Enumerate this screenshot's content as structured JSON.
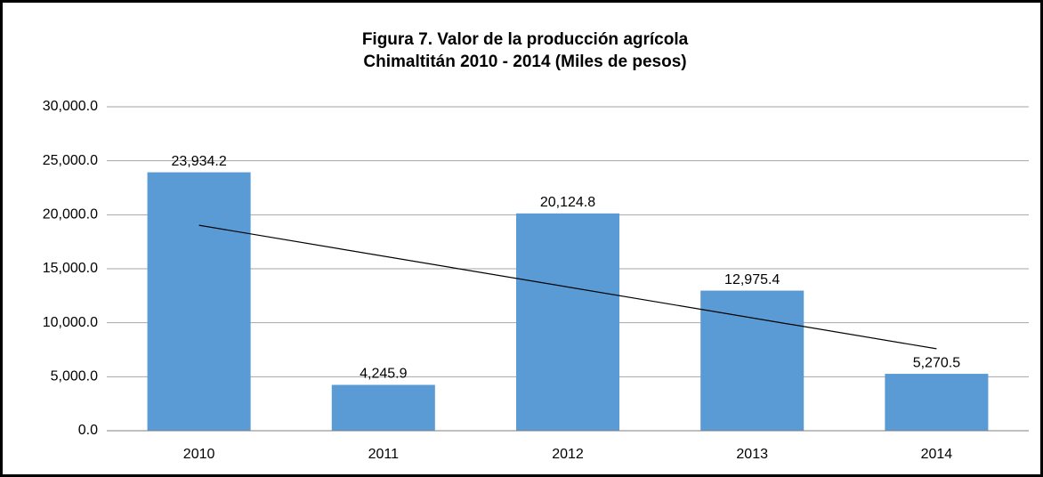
{
  "chart_data": {
    "type": "bar",
    "title": [
      "Figura 7. Valor de la producción agrícola",
      "Chimaltitán 2010 - 2014 (Miles de pesos)"
    ],
    "categories": [
      "2010",
      "2011",
      "2012",
      "2013",
      "2014"
    ],
    "values": [
      23934.2,
      4245.9,
      20124.8,
      12975.4,
      5270.5
    ],
    "value_labels": [
      "23,934.2",
      "4,245.9",
      "20,124.8",
      "12,975.4",
      "5,270.5"
    ],
    "color": "#5b9bd5",
    "ylim": [
      0,
      30000
    ],
    "yticks": [
      {
        "value": 0,
        "label": "0.0"
      },
      {
        "value": 5000,
        "label": "5,000.0"
      },
      {
        "value": 10000,
        "label": "10,000.0"
      },
      {
        "value": 15000,
        "label": "15,000.0"
      },
      {
        "value": 20000,
        "label": "20,000.0"
      },
      {
        "value": 25000,
        "label": "25,000.0"
      },
      {
        "value": 30000,
        "label": "30,000.0"
      }
    ],
    "grid": true,
    "trendline": "linear"
  }
}
